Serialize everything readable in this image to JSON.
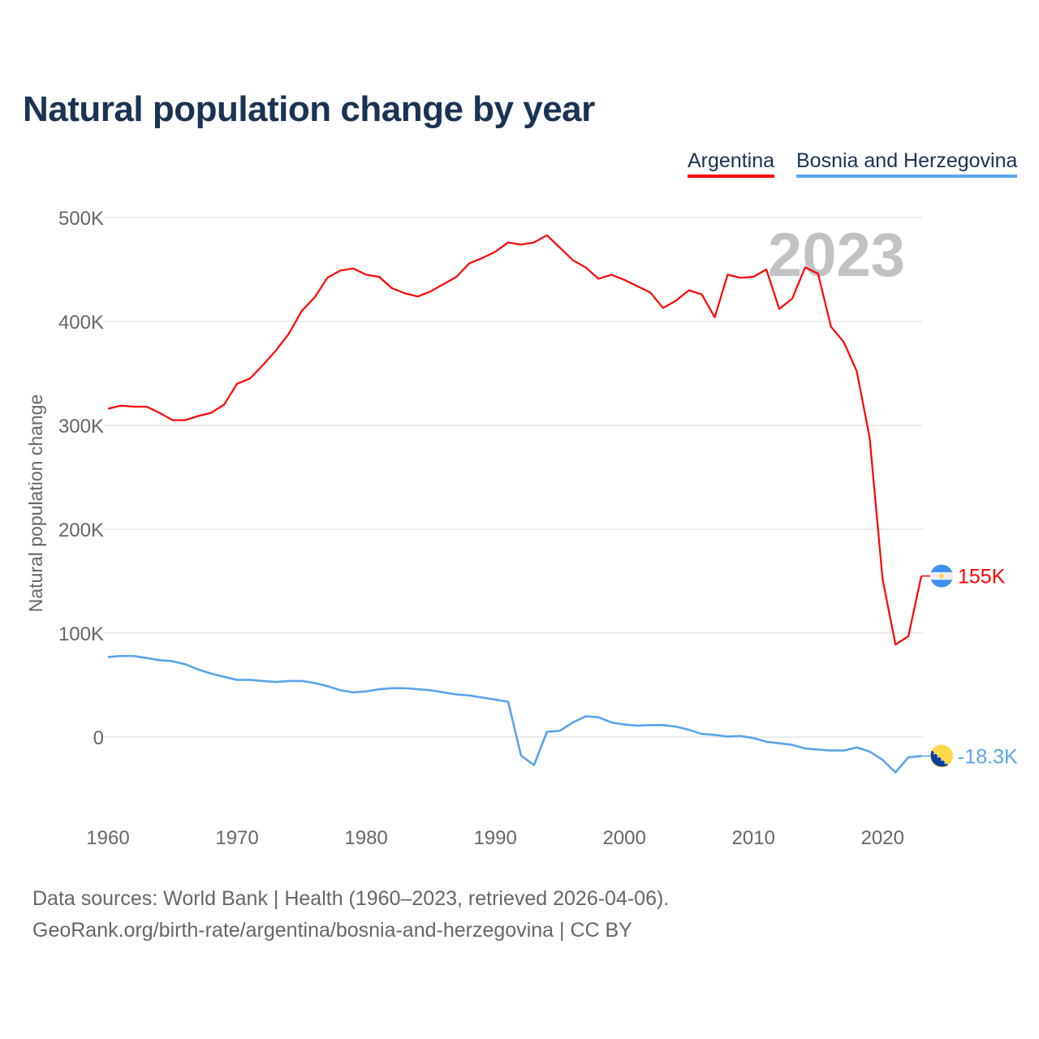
{
  "title": "Natural population change by year",
  "legend": [
    "Argentina",
    "Bosnia and Herzegovina"
  ],
  "source_line1": "Data sources: World Bank | Health (1960–2023, retrieved 2026-04-06).",
  "source_line2": "GeoRank.org/birth-rate/argentina/bosnia-and-herzegovina | CC BY",
  "chart_data": {
    "type": "line",
    "title": "Natural population change by year",
    "xlabel": "",
    "ylabel": "Natural population change",
    "xlim": [
      1960,
      2023
    ],
    "ylim": [
      -50000,
      500000
    ],
    "yticks": [
      0,
      100000,
      200000,
      300000,
      400000,
      500000
    ],
    "ytick_labels": [
      "0",
      "100K",
      "200K",
      "300K",
      "400K",
      "500K"
    ],
    "xticks": [
      1960,
      1970,
      1980,
      1990,
      2000,
      2010,
      2020
    ],
    "xtick_labels": [
      "1960",
      "1970",
      "1980",
      "1990",
      "2000",
      "2010",
      "2020"
    ],
    "grid": true,
    "legend_position": "top-right",
    "year_watermark": "2023",
    "x_start": 1960,
    "series": [
      {
        "name": "Argentina",
        "color": "#ff0000",
        "end_label": "155K",
        "flag": "argentina-flag",
        "values": [
          316000,
          319000,
          318000,
          318000,
          312000,
          305000,
          305000,
          309000,
          312000,
          320000,
          340000,
          345000,
          358000,
          372000,
          388000,
          410000,
          423000,
          442000,
          449000,
          451000,
          445000,
          443000,
          432000,
          427000,
          424000,
          429000,
          436000,
          443000,
          456000,
          461000,
          467000,
          476000,
          474000,
          476000,
          483000,
          471000,
          459000,
          452000,
          441000,
          445000,
          440000,
          434000,
          428000,
          413000,
          420000,
          430000,
          426000,
          404000,
          445000,
          442000,
          443000,
          450000,
          412000,
          422000,
          452000,
          446000,
          395000,
          380000,
          352000,
          288000,
          152000,
          89000,
          97000,
          155000
        ]
      },
      {
        "name": "Bosnia and Herzegovina",
        "color": "#5ba4ea",
        "end_label": "-18.3K",
        "flag": "bosnia-flag",
        "values": [
          77000,
          78000,
          78000,
          76000,
          74000,
          73000,
          70000,
          65000,
          61000,
          58000,
          55000,
          55000,
          54000,
          53000,
          54000,
          54000,
          52000,
          49000,
          45000,
          43000,
          44000,
          46000,
          47000,
          47000,
          46000,
          45000,
          43000,
          41000,
          40000,
          38000,
          36000,
          34000,
          -18000,
          -27000,
          5000,
          6000,
          14000,
          20000,
          19000,
          14000,
          12000,
          11000,
          11500,
          11500,
          10000,
          7000,
          3000,
          2000,
          500,
          1000,
          -1000,
          -4500,
          -6000,
          -7500,
          -11000,
          -12000,
          -13000,
          -13000,
          -10000,
          -14000,
          -22000,
          -34000,
          -19500,
          -18300
        ]
      }
    ]
  }
}
